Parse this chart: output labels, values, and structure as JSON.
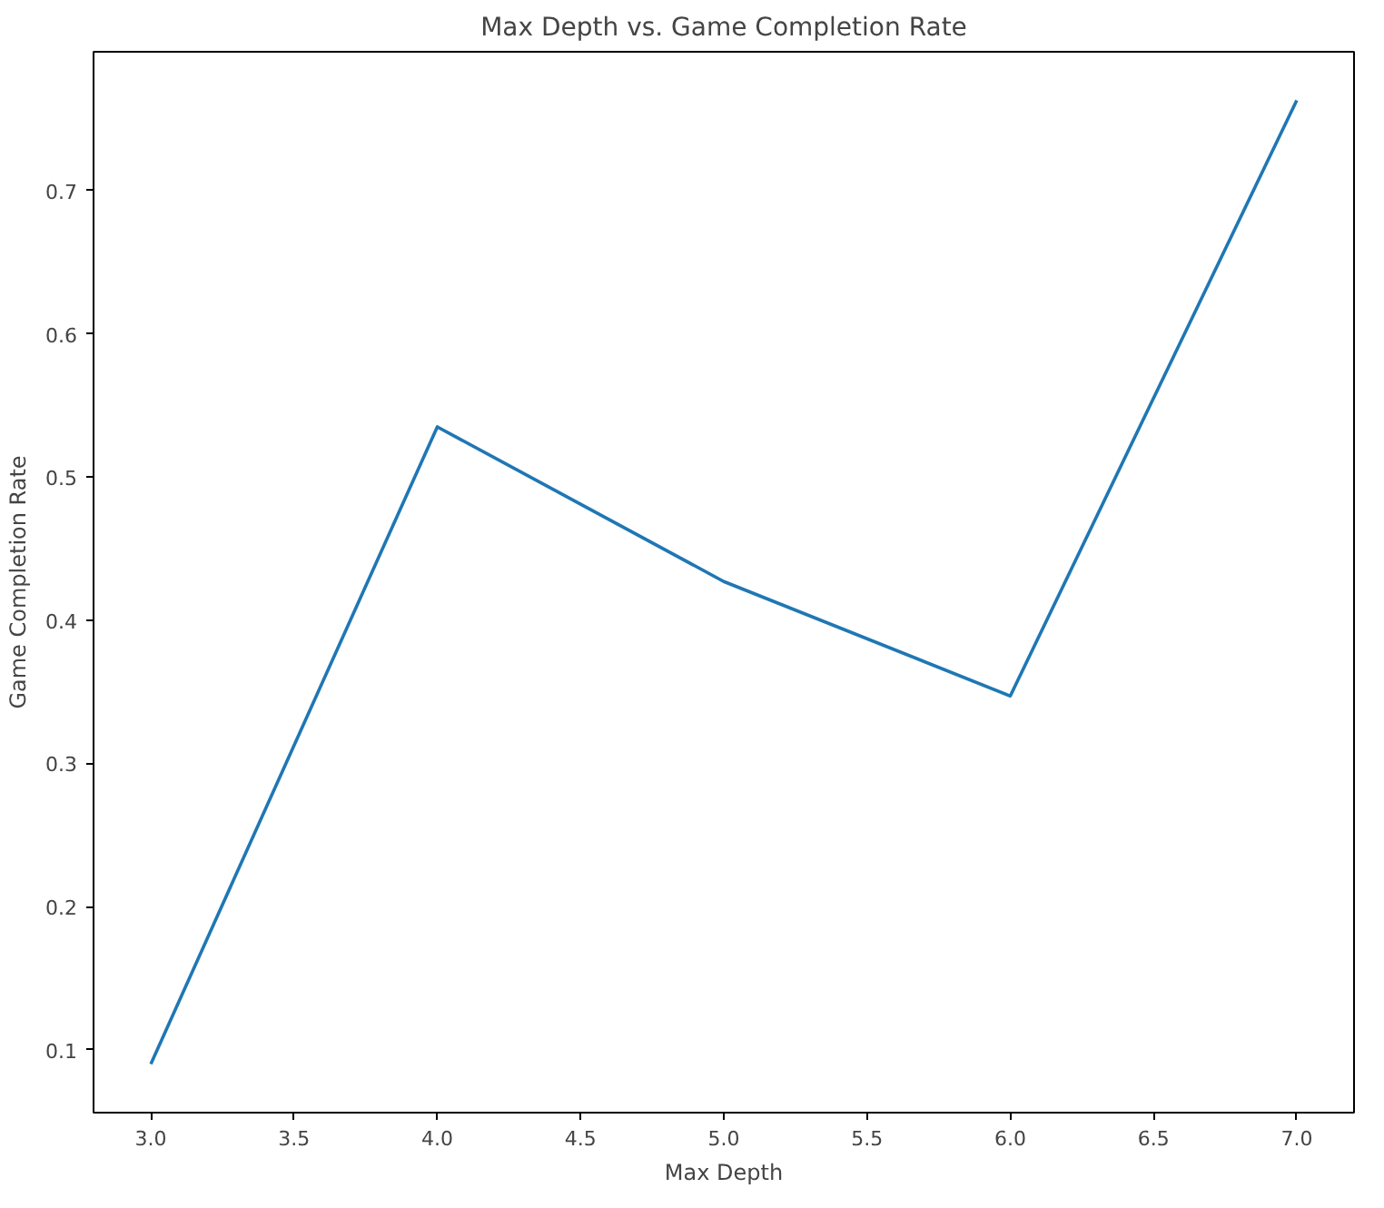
{
  "chart_data": {
    "type": "line",
    "title": "Max Depth vs. Game Completion Rate",
    "xlabel": "Max Depth",
    "ylabel": "Game Completion Rate",
    "x": [
      3,
      4,
      5,
      6,
      7
    ],
    "series": [
      {
        "color": "#1f77b4",
        "values": [
          0.09,
          0.535,
          0.427,
          0.347,
          0.763
        ]
      }
    ],
    "xlim": [
      2.8,
      7.2
    ],
    "ylim": [
      0.056,
      0.797
    ],
    "xticks": [
      {
        "value": 3,
        "label": "3.0"
      },
      3.5,
      {
        "value": 4,
        "label": "4.0"
      },
      4.5,
      {
        "value": 5,
        "label": "5.0"
      },
      5.5,
      {
        "value": 6,
        "label": "6.0"
      },
      6.5,
      {
        "value": 7,
        "label": "7.0"
      }
    ],
    "yticks": [
      0.1,
      0.2,
      0.3,
      0.4,
      0.5,
      0.6,
      0.7
    ],
    "grid": false
  }
}
